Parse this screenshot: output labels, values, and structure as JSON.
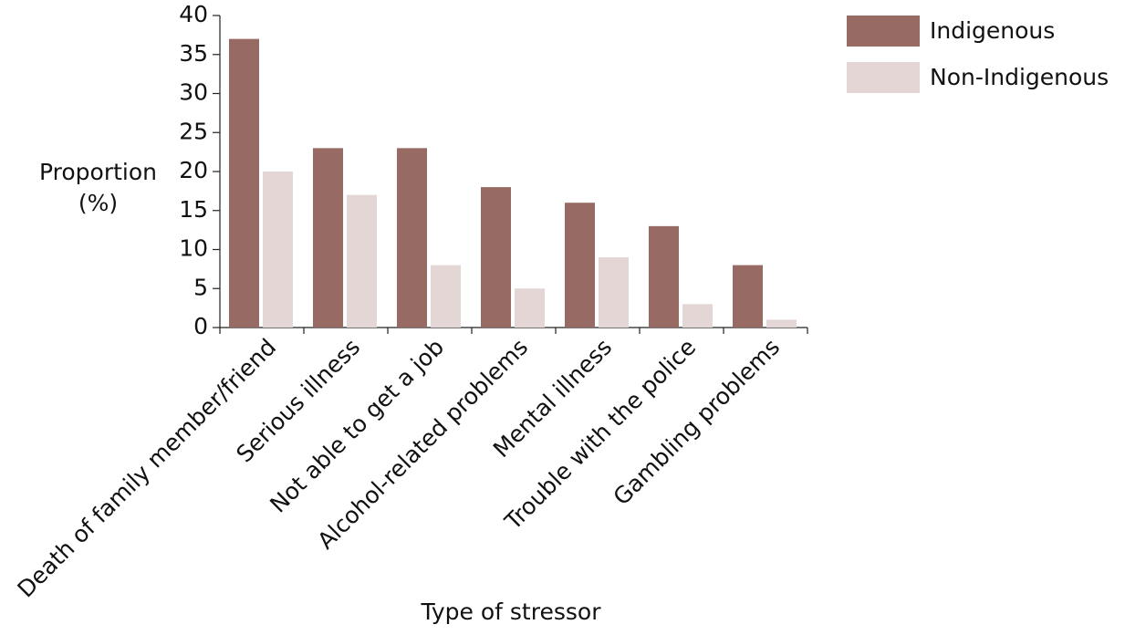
{
  "chart_data": {
    "type": "bar",
    "xlabel": "Type of stressor",
    "ylabel": "Proportion (%)",
    "categories": [
      "Death of family member/friend",
      "Serious illness",
      "Not able to get a job",
      "Alcohol-related problems",
      "Mental illness",
      "Trouble with the police",
      "Gambling problems"
    ],
    "series": [
      {
        "name": "Indigenous",
        "color": "#976a63",
        "values": [
          37,
          23,
          23,
          18,
          16,
          13,
          8
        ]
      },
      {
        "name": "Non-Indigenous",
        "color": "#e3d6d5",
        "values": [
          20,
          17,
          8,
          5,
          9,
          3,
          1
        ]
      }
    ],
    "ylim": [
      0,
      40
    ],
    "yticks": [
      0,
      5,
      10,
      15,
      20,
      25,
      30,
      35,
      40
    ],
    "legend": "top-right"
  }
}
